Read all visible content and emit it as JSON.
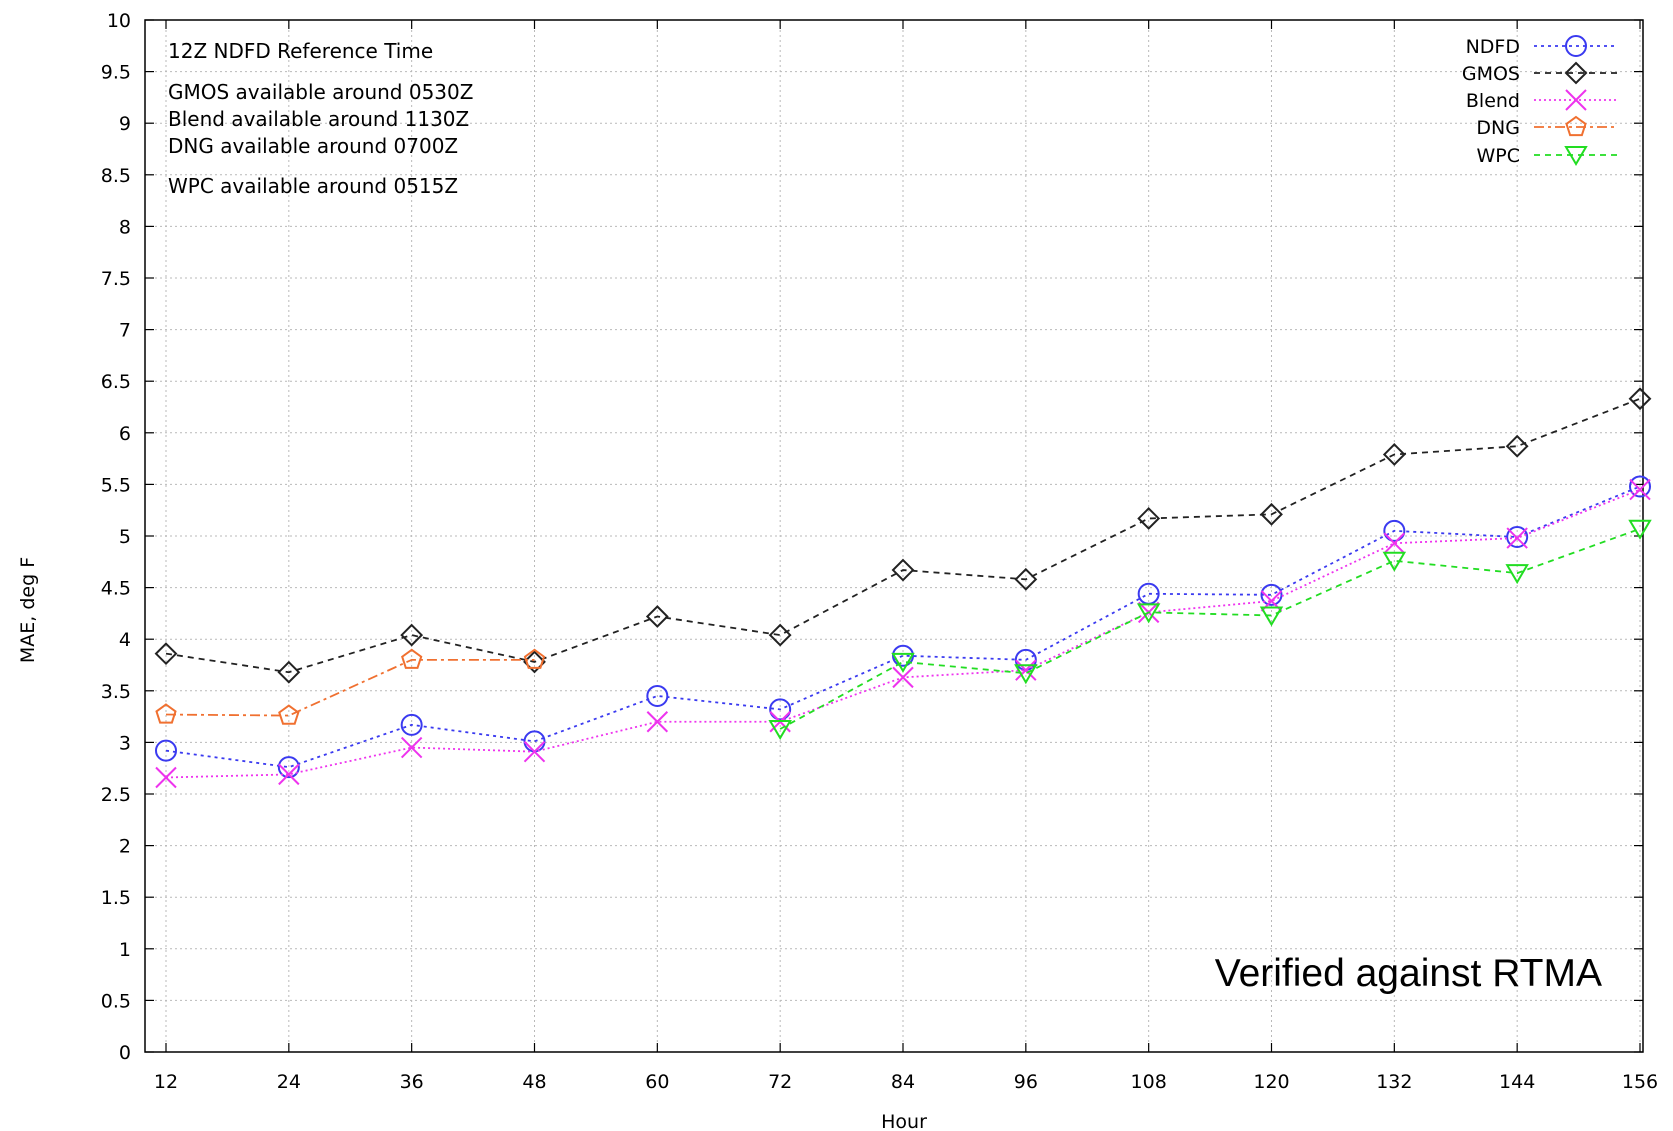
{
  "chart_data": {
    "type": "line",
    "title": "",
    "xlabel": "Hour",
    "ylabel": "MAE, deg F",
    "x": [
      12,
      24,
      36,
      48,
      60,
      72,
      84,
      96,
      108,
      120,
      132,
      144,
      156
    ],
    "xlim": [
      12,
      156
    ],
    "ylim": [
      0,
      10
    ],
    "yticks": [
      "0",
      "0.5",
      "1",
      "1.5",
      "2",
      "2.5",
      "3",
      "3.5",
      "4",
      "4.5",
      "5",
      "5.5",
      "6",
      "6.5",
      "7",
      "7.5",
      "8",
      "8.5",
      "9",
      "9.5",
      "10"
    ],
    "xticks": [
      "12",
      "24",
      "36",
      "48",
      "60",
      "72",
      "84",
      "96",
      "108",
      "120",
      "132",
      "144",
      "156"
    ],
    "grid": true,
    "legend_position": "top-right",
    "series": [
      {
        "name": "NDFD",
        "color": "#3a3af0",
        "marker": "circle",
        "dash": "dotted",
        "values": [
          2.92,
          2.76,
          3.17,
          3.01,
          3.45,
          3.32,
          3.84,
          3.8,
          4.44,
          4.43,
          5.05,
          4.99,
          5.48
        ]
      },
      {
        "name": "GMOS",
        "color": "#222222",
        "marker": "diamond",
        "dash": "dashed",
        "values": [
          3.86,
          3.68,
          4.04,
          3.78,
          4.22,
          4.04,
          4.67,
          4.58,
          5.17,
          5.21,
          5.79,
          5.87,
          6.33
        ]
      },
      {
        "name": "Blend",
        "color": "#ee33ee",
        "marker": "x",
        "dash": "dotted-fine",
        "values": [
          2.66,
          2.69,
          2.95,
          2.91,
          3.2,
          3.2,
          3.63,
          3.7,
          4.26,
          4.37,
          4.93,
          4.98,
          5.45
        ]
      },
      {
        "name": "DNG",
        "color": "#f07030",
        "marker": "pentagon",
        "dash": "dashdot",
        "values": [
          3.27,
          3.26,
          3.8,
          3.8,
          null,
          null,
          null,
          null,
          null,
          null,
          null,
          null,
          null
        ]
      },
      {
        "name": "WPC",
        "color": "#22dd22",
        "marker": "triangle-down",
        "dash": "dashed",
        "values": [
          null,
          null,
          null,
          null,
          null,
          3.13,
          3.78,
          3.67,
          4.26,
          4.23,
          4.76,
          4.64,
          5.07
        ]
      }
    ],
    "notes": [
      "12Z NDFD Reference Time",
      "GMOS available around 0530Z",
      "Blend available around 1130Z",
      "DNG available around 0700Z",
      "WPC available around 0515Z"
    ],
    "annotation": "Verified against RTMA"
  }
}
